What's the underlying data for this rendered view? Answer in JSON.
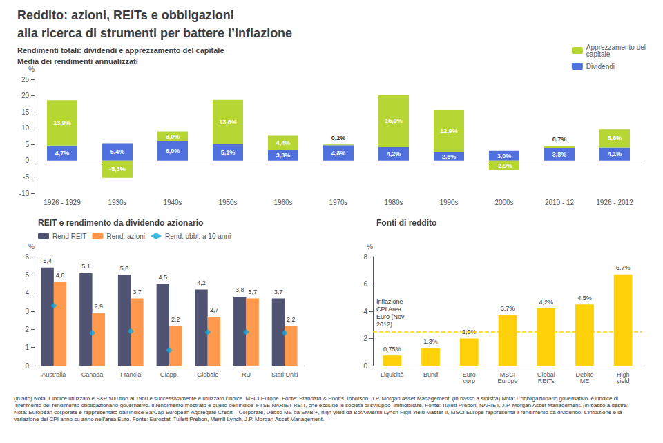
{
  "title": [
    "Reddito: azioni, REITs e obbligazioni",
    "alla ricerca di strumenti per battere l’inflazione"
  ],
  "subtitle": [
    "Rendimenti totali: dividendi e apprezzamento del capitale",
    "Media dei rendimenti annualizzati"
  ],
  "footnote": "(in alto) Nota. L’indice utilizzato è S&P 500 fino al 1960 e successivamente è utilizzato l’indice  MSCI Europe. Fonte: Standard & Poor’s, Ibbotson, J.P. Morgan Asset Management. (in basso a sinistra) Nota: L’obbligazionario governativo  è l’indice di riferimento del rendimento obbligazionario governativo. Il rendimento mostrato è quello dell’indice  FTSE NARIET REIT, che esclude le società di sviluppo  immobiliare. Fonte: Tullett Prebon, NARIET, J.P. Morgan Asset Management. (in basso a destra) Nota: European corporate è rappresentato dall’Indice BarCap European Aggregate Credit – Corporate, Debito ME da EMBI+, high yield da BofA/Merrill Lynch High Yield Master II, MSCI Europe rappresenta il rendimento da dividendo. L’inflazione è la variazione del CPI anno su anno nell’area Euro. Fonte: Eurostat, Tullett Prebon, Merrill Lynch, J.P. Morgan Asset Management.",
  "chart_data": [
    {
      "type": "bar",
      "stacked": true,
      "ylabel": "%",
      "categories": [
        "1926 - 1929",
        "1930s",
        "1940s",
        "1950s",
        "1960s",
        "1970s",
        "1980s",
        "1990s",
        "2000s",
        "2010 - 12",
        "1926 - 2012"
      ],
      "series": [
        {
          "name": "Apprezzamento del\ncapitale",
          "values": [
            13.9,
            -5.3,
            3.0,
            13.6,
            4.4,
            0.2,
            16.0,
            12.9,
            -2.9,
            0.7,
            5.6
          ],
          "value_labels": [
            "13,9%",
            "-5,3%",
            "3,0%",
            "13,6%",
            "4,4%",
            "0,2%",
            "16,0%",
            "12,9%",
            "-2,9%",
            "0,7%",
            "5,6%"
          ]
        },
        {
          "name": "Dividendi",
          "values": [
            4.7,
            5.4,
            6.0,
            5.1,
            3.3,
            4.8,
            4.2,
            2.6,
            3.0,
            3.8,
            4.1
          ],
          "value_labels": [
            "4,7%",
            "5,4%",
            "6,0%",
            "5,1%",
            "3,3%",
            "4,8%",
            "4,2%",
            "2,6%",
            "3,0%",
            "3,8%",
            "4,1%"
          ]
        }
      ],
      "ylim": [
        -10,
        25
      ],
      "yticks": [
        -10,
        -5,
        0,
        5,
        10,
        15,
        20,
        25
      ],
      "grid": false,
      "legend": "upper right",
      "data_labels": true
    },
    {
      "type": "bar",
      "title": "REIT e rendimento da dividendo azionario",
      "ylabel": "%",
      "categories": [
        "Australia",
        "Canada",
        "Francia",
        "Giapp.",
        "Globale",
        "RU",
        "Stati Uniti"
      ],
      "series": [
        {
          "name": "Rend REIT",
          "values": [
            5.4,
            5.1,
            5.0,
            4.5,
            4.2,
            3.8,
            3.7
          ],
          "value_labels": [
            "5,4",
            "5,1",
            "5,0",
            "4,5",
            "4,2",
            "3,8",
            "3,7"
          ],
          "data_labels": true
        },
        {
          "name": "Rend. azioni",
          "values": [
            4.6,
            2.9,
            3.7,
            2.2,
            2.7,
            3.7,
            2.2
          ],
          "value_labels": [
            "4,6",
            "2,9",
            "3,7",
            "2,2",
            "2,7",
            "3,7",
            "2,2"
          ],
          "data_labels": true
        },
        {
          "name": "Rend. obbl. a 10 anni",
          "type": "scatter",
          "marker": "diamond",
          "values": [
            3.3,
            1.8,
            1.9,
            0.85,
            1.85,
            1.85,
            1.8
          ]
        }
      ],
      "ylim": [
        0,
        6
      ],
      "yticks": [
        0,
        1,
        2,
        3,
        4,
        5,
        6
      ],
      "grid": false,
      "legend": "upper left"
    },
    {
      "type": "bar",
      "title": "Fonti di reddito",
      "ylabel": "%",
      "categories": [
        "Liquidità",
        "Bund",
        "Euro\ncorp",
        "MSCI\nEurope",
        "Global\nREITs",
        "Debito\nME",
        "High\nyield"
      ],
      "values": [
        0.75,
        1.3,
        2.0,
        3.7,
        4.2,
        4.5,
        6.7
      ],
      "value_labels": [
        "0,75%",
        "1,3%",
        "2,0%",
        "3,7%",
        "4,2%",
        "4,5%",
        "6,7%"
      ],
      "data_labels": true,
      "reference_line": {
        "value": 2.5,
        "label": "Inflazione\nCPI Area\nEuro (Nov\n2012)",
        "line_style": "dashed"
      },
      "ylim": [
        0,
        8
      ],
      "yticks": [
        0,
        2,
        4,
        6,
        8
      ],
      "grid": false
    }
  ]
}
